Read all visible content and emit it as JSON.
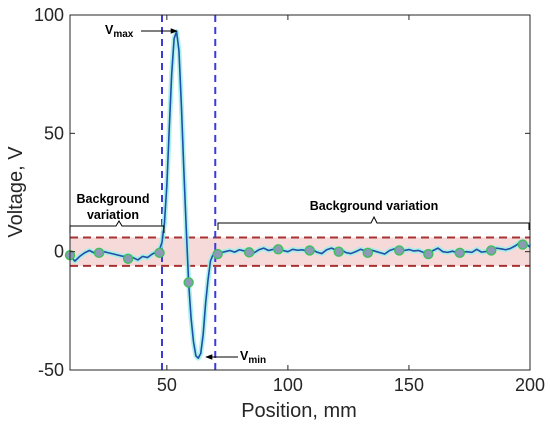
{
  "chart_data": {
    "type": "line",
    "xlabel": "Position, mm",
    "ylabel": "Voltage, V",
    "xlim": [
      10,
      200
    ],
    "ylim": [
      -50,
      100
    ],
    "xticks": [
      "50",
      "100",
      "150",
      "200"
    ],
    "yticks": [
      "-50",
      "0",
      "50",
      "100"
    ],
    "colors": {
      "signal_line": "#1f4fa8",
      "signal_glow": "#9ef0e8",
      "marker_fill": "#8c9ab8",
      "marker_edge": "#3fbf5a",
      "threshold_line": "#a83232",
      "band_fill": "#f6dada",
      "boundary_line": "#3b3bd6"
    },
    "series": [
      {
        "x": [
          10,
          12,
          14,
          16,
          18,
          20,
          22,
          24,
          26,
          28,
          30,
          32,
          34,
          36,
          38,
          40,
          42,
          44,
          46,
          47,
          48,
          49,
          50,
          51,
          52,
          53,
          54,
          55,
          56,
          57,
          58,
          59,
          60,
          61,
          62,
          63,
          64,
          65,
          66,
          67,
          68,
          69,
          70,
          72,
          74,
          76,
          78,
          80,
          82,
          84,
          86,
          88,
          90,
          92,
          94,
          96,
          98,
          100,
          102,
          104,
          106,
          108,
          110,
          112,
          114,
          116,
          118,
          120,
          122,
          124,
          126,
          128,
          130,
          132,
          134,
          136,
          138,
          140,
          142,
          144,
          146,
          148,
          150,
          152,
          154,
          156,
          158,
          160,
          162,
          164,
          166,
          168,
          170,
          172,
          174,
          176,
          178,
          180,
          182,
          184,
          186,
          188,
          190,
          192,
          194,
          196,
          198,
          200
        ],
        "y": [
          -1.5,
          -4,
          -2,
          -0.5,
          0.5,
          -0.5,
          -1,
          0,
          -0.5,
          -1,
          -1.5,
          -2,
          -1.5,
          -2.5,
          -3.5,
          -2,
          -2.5,
          -1,
          0,
          1,
          4,
          12,
          28,
          52,
          75,
          90,
          93,
          85,
          62,
          35,
          10,
          -13,
          -28,
          -38,
          -44,
          -45,
          -43,
          -35,
          -22,
          -12,
          -4,
          -1.5,
          -1,
          -0.5,
          0,
          0.5,
          -0.2,
          0.8,
          0.3,
          1,
          -0.5,
          0.8,
          1.5,
          0.5,
          1,
          1.5,
          0.5,
          0,
          1,
          0.6,
          0.8,
          0.1,
          0.9,
          -0.2,
          -0.8,
          0.8,
          1.5,
          0.6,
          0.8,
          -0.4,
          -0.8,
          0,
          1,
          0.3,
          0.8,
          0.2,
          -0.4,
          -1,
          0.5,
          1.2,
          0.8,
          0.5,
          0.9,
          0.3,
          0.5,
          -0.3,
          -0.4,
          0.5,
          1.5,
          0,
          -0.3,
          0.2,
          -0.5,
          -0.2,
          0,
          -0.3,
          1,
          -0.2,
          0.1,
          0.5,
          1.5,
          1.2,
          0.8,
          1.4,
          2.5,
          4,
          3.5,
          2
        ]
      }
    ],
    "markers": {
      "x": [
        10,
        22,
        34,
        47,
        59,
        71,
        84,
        96,
        109,
        121,
        133,
        146,
        158,
        171,
        184,
        197
      ],
      "y": [
        -1.5,
        -0.5,
        -3,
        -0.5,
        -13,
        -1,
        -0.3,
        1,
        0.5,
        0,
        -0.5,
        0.5,
        -1,
        -0.5,
        0.5,
        3
      ]
    },
    "thresholds": [
      6,
      -6
    ],
    "boundaries": [
      48,
      70
    ],
    "annotations": {
      "vmax_main": "V",
      "vmax_sub": "max",
      "vmin_main": "V",
      "vmin_sub": "min",
      "bg_left_line1": "Background",
      "bg_left_line2": "variation",
      "bg_right": "Background variation"
    }
  }
}
